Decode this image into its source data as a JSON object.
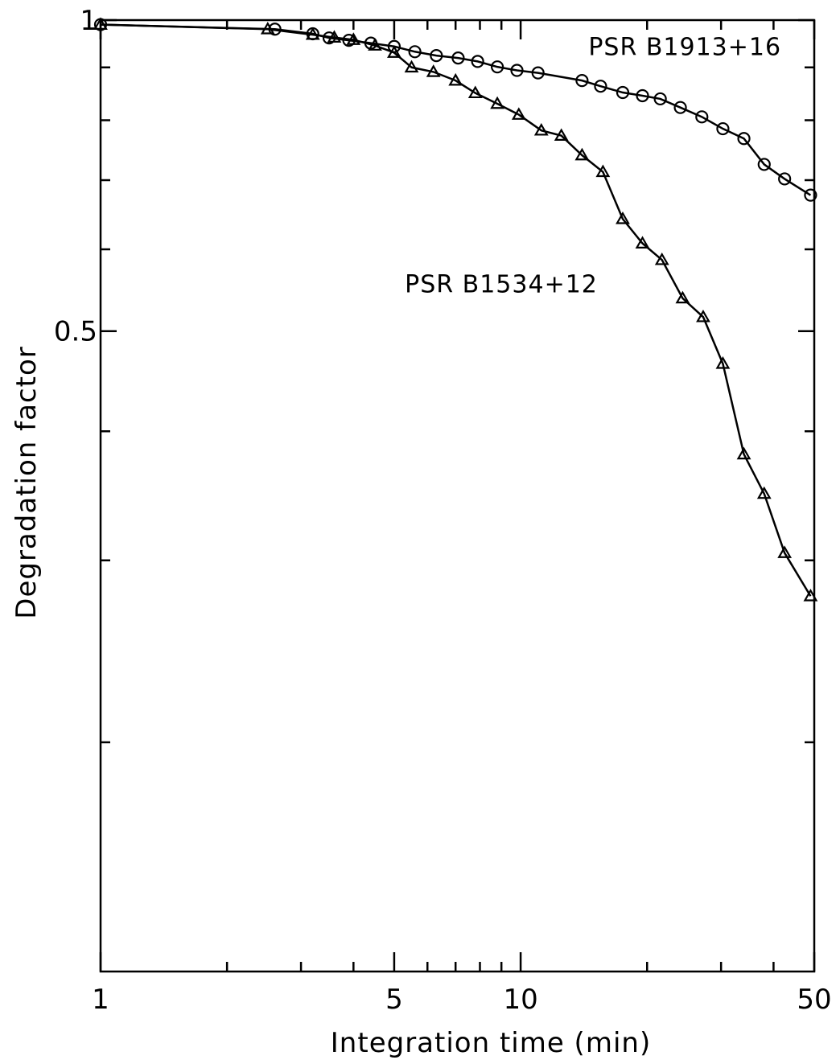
{
  "chart_data": {
    "type": "line",
    "xlabel": "Integration time (min)",
    "ylabel": "Degradation factor",
    "x_scale": "log",
    "y_scale": "log",
    "xlim": [
      1,
      50
    ],
    "ylim": [
      0.12,
      1
    ],
    "x_tick_labels": [
      {
        "value": 1,
        "label": "1"
      },
      {
        "value": 5,
        "label": "5"
      },
      {
        "value": 10,
        "label": "10"
      },
      {
        "value": 50,
        "label": "50"
      }
    ],
    "x_minor_ticks": [
      2,
      3,
      4,
      6,
      7,
      8,
      9,
      20,
      30,
      40
    ],
    "y_tick_labels": [
      {
        "value": 1,
        "label": "1"
      },
      {
        "value": 0.5,
        "label": "0.5"
      }
    ],
    "y_minor_ticks": [
      0.9,
      0.8,
      0.7,
      0.6,
      0.4,
      0.3,
      0.2
    ],
    "annotations": [
      {
        "text": "PSR B1913+16",
        "x": 14.5,
        "y": 0.925
      },
      {
        "text": "PSR B1534+12",
        "x": 5.3,
        "y": 0.545
      }
    ],
    "series": [
      {
        "name": "PSR B1913+16",
        "marker": "circle",
        "x": [
          1.0,
          2.6,
          3.2,
          3.5,
          3.9,
          4.4,
          5.0,
          5.6,
          6.3,
          7.1,
          7.9,
          8.8,
          9.8,
          11.0,
          14.0,
          15.5,
          17.5,
          19.5,
          21.5,
          24.0,
          27.0,
          30.3,
          34.0,
          38.0,
          42.5,
          49.0
        ],
        "y": [
          0.99,
          0.98,
          0.97,
          0.961,
          0.956,
          0.95,
          0.943,
          0.932,
          0.924,
          0.919,
          0.912,
          0.901,
          0.894,
          0.889,
          0.874,
          0.863,
          0.851,
          0.845,
          0.839,
          0.823,
          0.806,
          0.785,
          0.768,
          0.725,
          0.702,
          0.677
        ]
      },
      {
        "name": "PSR B1534+12",
        "marker": "triangle",
        "x": [
          1.0,
          2.5,
          3.2,
          3.6,
          4.0,
          4.5,
          5.0,
          5.5,
          6.2,
          7.0,
          7.8,
          8.8,
          9.9,
          11.2,
          12.5,
          14.0,
          15.7,
          17.5,
          19.5,
          21.7,
          24.3,
          27.2,
          30.3,
          34.0,
          38.0,
          42.5,
          49.0
        ],
        "y": [
          0.99,
          0.98,
          0.968,
          0.962,
          0.957,
          0.945,
          0.93,
          0.9,
          0.891,
          0.874,
          0.85,
          0.83,
          0.81,
          0.782,
          0.773,
          0.74,
          0.713,
          0.642,
          0.608,
          0.586,
          0.538,
          0.516,
          0.465,
          0.38,
          0.348,
          0.305,
          0.277
        ]
      }
    ]
  }
}
